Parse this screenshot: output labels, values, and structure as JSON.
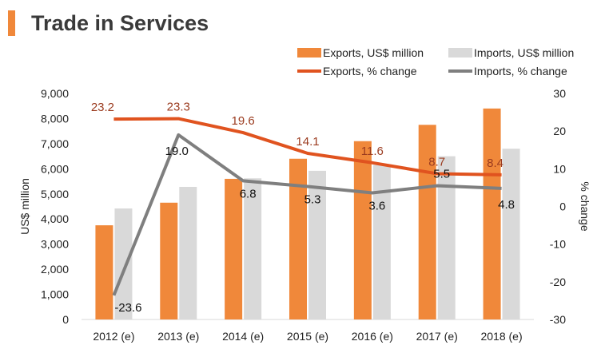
{
  "title": "Trade in Services",
  "colors": {
    "accent": "#f0883a",
    "exports_bar": "#f0883a",
    "imports_bar": "#d9d9d9",
    "exports_line": "#e0531f",
    "imports_line": "#7f7f7f",
    "exports_label": "#9b3b1f",
    "text": "#222222"
  },
  "chart_data": {
    "type": "bar",
    "categories": [
      "2012 (e)",
      "2013 (e)",
      "2014 (e)",
      "2015 (e)",
      "2016 (e)",
      "2017 (e)",
      "2018 (e)"
    ],
    "series": [
      {
        "name": "Exports, US$ million",
        "kind": "bar",
        "axis": "left",
        "values": [
          3750,
          4650,
          5600,
          6400,
          7100,
          7750,
          8400
        ]
      },
      {
        "name": "Imports, US$ million",
        "kind": "bar",
        "axis": "left",
        "values": [
          4420,
          5280,
          5620,
          5920,
          6150,
          6500,
          6800
        ]
      },
      {
        "name": "Exports, % change",
        "kind": "line",
        "axis": "right",
        "values": [
          23.2,
          23.3,
          19.6,
          14.1,
          11.6,
          8.7,
          8.4
        ]
      },
      {
        "name": "Imports, % change",
        "kind": "line",
        "axis": "right",
        "values": [
          -23.6,
          19.0,
          6.8,
          5.3,
          3.6,
          5.5,
          4.8
        ]
      }
    ],
    "ylabel": "US$ million",
    "y2label": "% change",
    "ylim": [
      0,
      9000
    ],
    "yticks": [
      "0",
      "1,000",
      "2,000",
      "3,000",
      "4,000",
      "5,000",
      "6,000",
      "7,000",
      "8,000",
      "9,000"
    ],
    "y2lim": [
      -30,
      30
    ],
    "y2ticks": [
      "-30",
      "-20",
      "-10",
      "0",
      "10",
      "20",
      "30"
    ],
    "export_labels": [
      "23.2",
      "23.3",
      "19.6",
      "14.1",
      "11.6",
      "8.7",
      "8.4"
    ],
    "import_labels": [
      "-23.6",
      "19.0",
      "6.8",
      "5.3",
      "3.6",
      "5.5",
      "4.8"
    ],
    "legend_position": "top-right",
    "grid": false
  }
}
